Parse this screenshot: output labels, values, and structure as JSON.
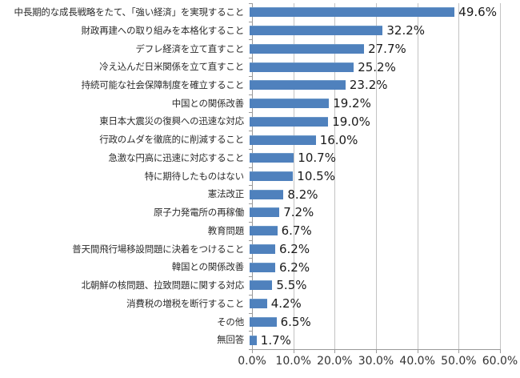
{
  "chart_data": {
    "type": "bar",
    "orientation": "horizontal",
    "title": "",
    "xlabel": "",
    "ylabel": "",
    "legend": "none",
    "grid": "vertical",
    "xlim": [
      0,
      60
    ],
    "x_ticks": [
      0,
      10,
      20,
      30,
      40,
      50,
      60
    ],
    "x_tick_labels": [
      "0.0%",
      "10.0%",
      "20.0%",
      "30.0%",
      "40.0%",
      "50.0%",
      "60.0%"
    ],
    "categories": [
      "中長期的な成長戦略をたて、「強い経済」を実現すること",
      "財政再建への取り組みを本格化すること",
      "デフレ経済を立て直すこと",
      "冷え込んだ日米関係を立て直すこと",
      "持続可能な社会保障制度を確立すること",
      "中国との関係改善",
      "東日本大震災の復興への迅速な対応",
      "行政のムダを徹底的に削減すること",
      "急激な円高に迅速に対応すること",
      "特に期待したものはない",
      "憲法改正",
      "原子力発電所の再稼働",
      "教育問題",
      "普天間飛行場移設問題に決着をつけること",
      "韓国との関係改善",
      "北朝鮮の核問題、拉致問題に関する対応",
      "消費税の増税を断行すること",
      "その他",
      "無回答"
    ],
    "values": [
      49.6,
      32.2,
      27.7,
      25.2,
      23.2,
      19.2,
      19.0,
      16.0,
      10.7,
      10.5,
      8.2,
      7.2,
      6.7,
      6.2,
      6.2,
      5.5,
      4.2,
      6.5,
      1.7
    ],
    "value_labels": [
      "49.6%",
      "32.2%",
      "27.7%",
      "25.2%",
      "23.2%",
      "19.2%",
      "19.0%",
      "16.0%",
      "10.7%",
      "10.5%",
      "8.2%",
      "7.2%",
      "6.7%",
      "6.2%",
      "6.2%",
      "5.5%",
      "4.2%",
      "6.5%",
      "1.7%"
    ],
    "colors": {
      "bar": "#4f81bd",
      "bar_highlight": "#6d99c9",
      "gridline": "#c3c3c3",
      "axis": "#9a9a9a",
      "category_text": "#2b2b2b",
      "value_text": "#1a1a1a",
      "tick_text": "#333333",
      "background": "#ffffff"
    }
  }
}
